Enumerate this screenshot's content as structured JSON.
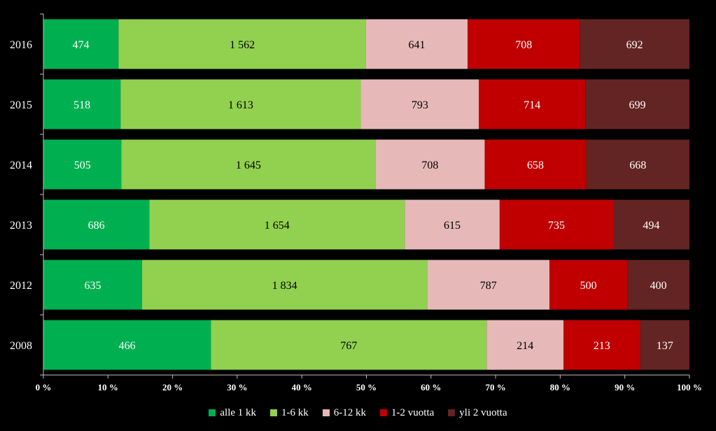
{
  "chart_data": {
    "type": "bar",
    "orientation": "horizontal",
    "stacked": "percent",
    "categories": [
      "2016",
      "2015",
      "2014",
      "2013",
      "2012",
      "2008"
    ],
    "series": [
      {
        "name": "alle 1 kk",
        "color": "#00b050",
        "values": [
          474,
          518,
          505,
          686,
          635,
          466
        ],
        "labels": [
          "474",
          "518",
          "505",
          "686",
          "635",
          "466"
        ]
      },
      {
        "name": "1-6 kk",
        "color": "#92d050",
        "values": [
          1562,
          1613,
          1645,
          1654,
          1834,
          767
        ],
        "labels": [
          "1 562",
          "1 613",
          "1 645",
          "1 654",
          "1 834",
          "767"
        ]
      },
      {
        "name": "6-12 kk",
        "color": "#e6b9b8",
        "values": [
          641,
          793,
          708,
          615,
          787,
          214
        ],
        "labels": [
          "641",
          "793",
          "708",
          "615",
          "787",
          "214"
        ]
      },
      {
        "name": "1-2 vuotta",
        "color": "#c00000",
        "values": [
          708,
          714,
          658,
          735,
          500,
          213
        ],
        "labels": [
          "708",
          "714",
          "658",
          "735",
          "500",
          "213"
        ]
      },
      {
        "name": "yli 2 vuotta",
        "color": "#632523",
        "values": [
          692,
          699,
          668,
          494,
          400,
          137
        ],
        "labels": [
          "692",
          "699",
          "668",
          "494",
          "400",
          "137"
        ]
      }
    ],
    "x_ticks": [
      "0 %",
      "10 %",
      "20 %",
      "30 %",
      "40 %",
      "50 %",
      "60 %",
      "70 %",
      "80 %",
      "90 %",
      "100 %"
    ],
    "xlim": [
      0,
      100
    ],
    "grid": false,
    "legend_position": "bottom",
    "colors": {
      "background": "#000000",
      "text": "#ffffff",
      "axis": "#bfbfbf",
      "label_dark": "#000000",
      "label_light": "#ffffff"
    }
  }
}
